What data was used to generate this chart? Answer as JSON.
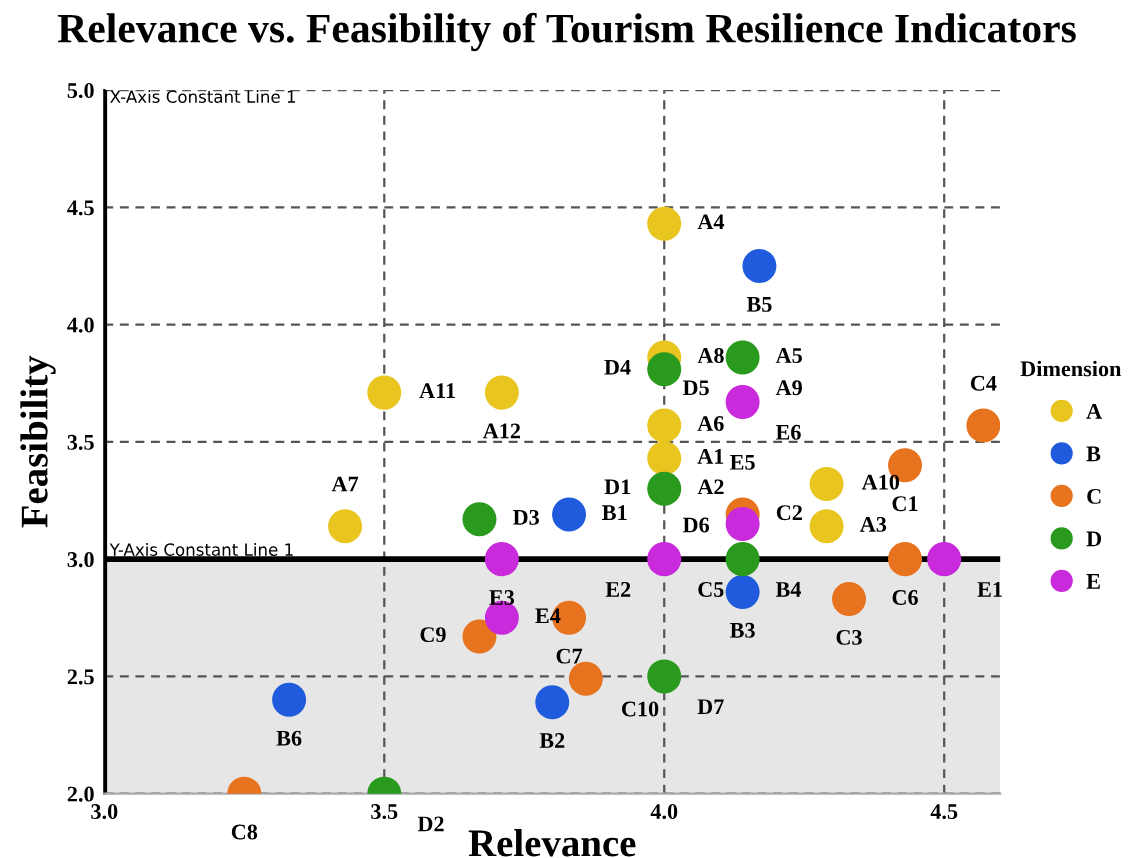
{
  "chart_data": {
    "type": "scatter",
    "title": "Relevance vs. Feasibility of Tourism Resilience Indicators",
    "xlabel": "Relevance",
    "ylabel": "Feasibility",
    "legend_title": "Dimension",
    "legend": "right",
    "grid": true,
    "marker": "circle",
    "xlim": [
      3.0,
      4.6
    ],
    "ylim": [
      2.0,
      5.0
    ],
    "xticks": [
      {
        "value": 3.0,
        "label": "3.0"
      },
      {
        "value": 3.5,
        "label": "3.5"
      },
      {
        "value": 4.0,
        "label": "4.0"
      },
      {
        "value": 4.5,
        "label": "4.5"
      }
    ],
    "yticks": [
      {
        "value": 2.0,
        "label": "2.0"
      },
      {
        "value": 2.5,
        "label": "2.5"
      },
      {
        "value": 3.0,
        "label": "3.0"
      },
      {
        "value": 3.5,
        "label": "3.5"
      },
      {
        "value": 4.0,
        "label": "4.0"
      },
      {
        "value": 4.5,
        "label": "4.5"
      },
      {
        "value": 5.0,
        "label": "5.0"
      }
    ],
    "ref_lines": [
      {
        "axis": "x",
        "value": 3.0,
        "label": "X-Axis Constant Line 1",
        "color": "#000000"
      },
      {
        "axis": "y",
        "value": 3.0,
        "label": "Y-Axis Constant Line 1",
        "color": "#000000"
      }
    ],
    "bands": [
      {
        "axis": "y",
        "from": 2.0,
        "to": 3.0,
        "color": "#e6e6e6"
      }
    ],
    "series": [
      {
        "name": "A",
        "color": "#e8c51f",
        "x": [
          4.0,
          null,
          4.29,
          4.0,
          null,
          4.0,
          3.43,
          4.0,
          null,
          4.29,
          3.5,
          3.71
        ],
        "values": [
          3.43,
          null,
          3.14,
          4.43,
          null,
          3.57,
          3.14,
          3.86,
          null,
          3.32,
          3.71,
          3.71
        ]
      },
      {
        "name": "B",
        "color": "#1f5bdc",
        "x": [
          3.83,
          3.8,
          4.14,
          null,
          4.17,
          3.33
        ],
        "values": [
          3.19,
          2.39,
          2.86,
          null,
          4.25,
          2.4
        ]
      },
      {
        "name": "C",
        "color": "#e8731f",
        "x": [
          4.43,
          4.14,
          4.33,
          4.57,
          null,
          4.43,
          3.83,
          3.25,
          3.67,
          3.86
        ],
        "values": [
          3.4,
          3.19,
          2.83,
          3.57,
          null,
          3.0,
          2.75,
          2.0,
          2.67,
          2.49
        ]
      },
      {
        "name": "D",
        "color": "#2a9a1f",
        "x": [
          4.0,
          3.5,
          3.67,
          4.0,
          4.14,
          4.14,
          4.0
        ],
        "values": [
          3.3,
          2.0,
          3.17,
          3.81,
          3.86,
          3.0,
          2.5
        ]
      },
      {
        "name": "E",
        "color": "#c92adb",
        "x": [
          4.5,
          4.0,
          3.71,
          3.71,
          4.14,
          4.14
        ],
        "values": [
          3.0,
          3.0,
          3.0,
          2.75,
          3.15,
          3.67
        ]
      }
    ],
    "annotations": [
      {
        "text": "A1",
        "x": 4.0,
        "y": 3.43
      },
      {
        "text": "A2",
        "x": 4.0,
        "y": 3.3
      },
      {
        "text": "A3",
        "x": 4.29,
        "y": 3.14
      },
      {
        "text": "A4",
        "x": 4.0,
        "y": 4.43
      },
      {
        "text": "A5",
        "x": 4.14,
        "y": 3.86
      },
      {
        "text": "A6",
        "x": 4.0,
        "y": 3.57
      },
      {
        "text": "A7",
        "x": 3.43,
        "y": 3.14
      },
      {
        "text": "A8",
        "x": 4.0,
        "y": 3.86
      },
      {
        "text": "A9",
        "x": 4.14,
        "y": 3.86
      },
      {
        "text": "A10",
        "x": 4.29,
        "y": 3.32
      },
      {
        "text": "A11",
        "x": 3.5,
        "y": 3.71
      },
      {
        "text": "A12",
        "x": 3.71,
        "y": 3.71
      },
      {
        "text": "B1",
        "x": 3.83,
        "y": 3.19
      },
      {
        "text": "B2",
        "x": 3.8,
        "y": 2.39
      },
      {
        "text": "B3",
        "x": 4.14,
        "y": 2.86
      },
      {
        "text": "B4",
        "x": 4.14,
        "y": 3.0
      },
      {
        "text": "B5",
        "x": 4.17,
        "y": 4.25
      },
      {
        "text": "B6",
        "x": 3.33,
        "y": 2.4
      },
      {
        "text": "C1",
        "x": 4.43,
        "y": 3.4
      },
      {
        "text": "C2",
        "x": 4.14,
        "y": 3.19
      },
      {
        "text": "C3",
        "x": 4.33,
        "y": 2.83
      },
      {
        "text": "C4",
        "x": 4.57,
        "y": 3.57
      },
      {
        "text": "C5",
        "x": 4.0,
        "y": 3.0
      },
      {
        "text": "C6",
        "x": 4.43,
        "y": 3.0
      },
      {
        "text": "C7",
        "x": 3.83,
        "y": 2.75
      },
      {
        "text": "C8",
        "x": 3.25,
        "y": 2.0
      },
      {
        "text": "C9",
        "x": 3.67,
        "y": 2.67
      },
      {
        "text": "C10",
        "x": 3.86,
        "y": 2.49
      },
      {
        "text": "D1",
        "x": 4.0,
        "y": 3.3
      },
      {
        "text": "D2",
        "x": 3.5,
        "y": 2.0
      },
      {
        "text": "D3",
        "x": 3.67,
        "y": 3.17
      },
      {
        "text": "D4",
        "x": 4.0,
        "y": 3.81
      },
      {
        "text": "D5",
        "x": 4.14,
        "y": 3.86
      },
      {
        "text": "D6",
        "x": 4.14,
        "y": 3.0
      },
      {
        "text": "D7",
        "x": 4.0,
        "y": 2.5
      },
      {
        "text": "E1",
        "x": 4.5,
        "y": 3.0
      },
      {
        "text": "E2",
        "x": 4.0,
        "y": 3.0
      },
      {
        "text": "E3",
        "x": 3.71,
        "y": 3.0
      },
      {
        "text": "E4",
        "x": 3.71,
        "y": 2.75
      },
      {
        "text": "E5",
        "x": 4.14,
        "y": 3.15
      },
      {
        "text": "E6",
        "x": 4.14,
        "y": 3.67
      }
    ]
  }
}
